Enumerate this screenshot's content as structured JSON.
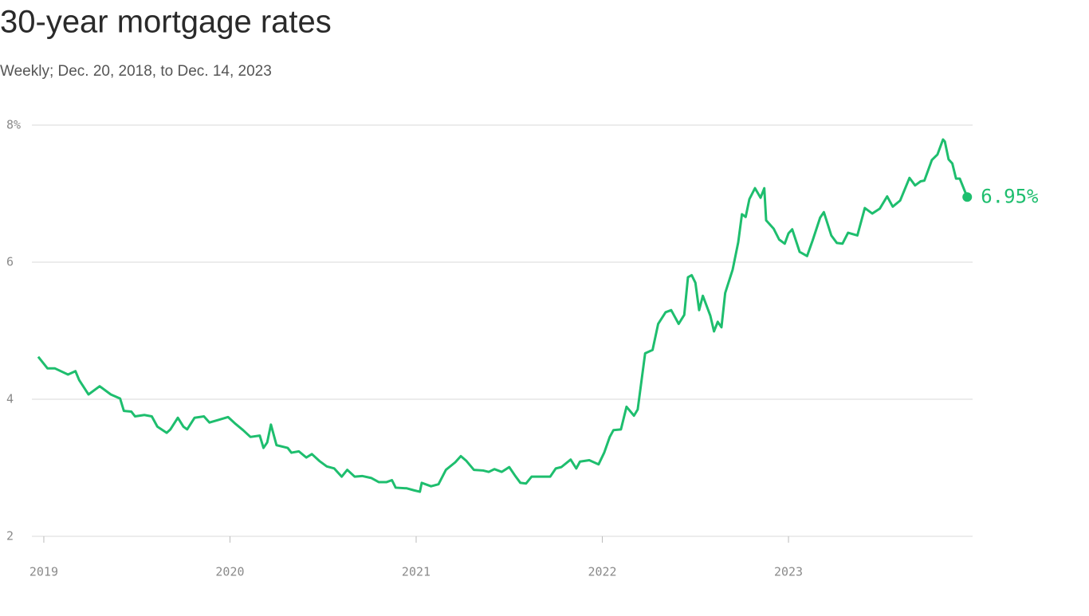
{
  "chart_data": {
    "type": "line",
    "title": "30-year mortgage rates",
    "subtitle": "Weekly; Dec. 20, 2018, to Dec. 14, 2023",
    "x": [
      2018.97,
      2019.02,
      2019.06,
      2019.13,
      2019.17,
      2019.19,
      2019.24,
      2019.3,
      2019.36,
      2019.41,
      2019.43,
      2019.47,
      2019.49,
      2019.54,
      2019.58,
      2019.61,
      2019.66,
      2019.68,
      2019.72,
      2019.75,
      2019.77,
      2019.81,
      2019.86,
      2019.89,
      2019.94,
      2019.99,
      2020.03,
      2020.07,
      2020.11,
      2020.16,
      2020.18,
      2020.2,
      2020.22,
      2020.25,
      2020.31,
      2020.33,
      2020.37,
      2020.41,
      2020.44,
      2020.48,
      2020.52,
      2020.56,
      2020.6,
      2020.63,
      2020.67,
      2020.71,
      2020.76,
      2020.8,
      2020.84,
      2020.87,
      2020.89,
      2020.95,
      2020.99,
      2021.02,
      2021.03,
      2021.08,
      2021.12,
      2021.16,
      2021.21,
      2021.24,
      2021.27,
      2021.31,
      2021.36,
      2021.39,
      2021.42,
      2021.46,
      2021.5,
      2021.53,
      2021.56,
      2021.59,
      2021.62,
      2021.68,
      2021.72,
      2021.75,
      2021.78,
      2021.83,
      2021.86,
      2021.88,
      2021.93,
      2021.98,
      2022.01,
      2022.04,
      2022.06,
      2022.1,
      2022.13,
      2022.17,
      2022.19,
      2022.23,
      2022.27,
      2022.3,
      2022.34,
      2022.37,
      2022.41,
      2022.44,
      2022.46,
      2022.48,
      2022.5,
      2022.52,
      2022.54,
      2022.58,
      2022.6,
      2022.62,
      2022.64,
      2022.66,
      2022.7,
      2022.73,
      2022.75,
      2022.77,
      2022.79,
      2022.82,
      2022.85,
      2022.87,
      2022.88,
      2022.92,
      2022.95,
      2022.98,
      2023.0,
      2023.02,
      2023.06,
      2023.1,
      2023.13,
      2023.17,
      2023.19,
      2023.23,
      2023.26,
      2023.29,
      2023.32,
      2023.37,
      2023.41,
      2023.45,
      2023.49,
      2023.53,
      2023.56,
      2023.6,
      2023.65,
      2023.68,
      2023.71,
      2023.73,
      2023.77,
      2023.8,
      2023.83,
      2023.84,
      2023.86,
      2023.88,
      2023.9,
      2023.92,
      2023.96
    ],
    "series": [
      {
        "name": "30-year mortgage rate",
        "color": "#1ebe6e",
        "values": [
          4.62,
          4.45,
          4.45,
          4.36,
          4.41,
          4.28,
          4.07,
          4.19,
          4.07,
          4.01,
          3.83,
          3.82,
          3.75,
          3.77,
          3.75,
          3.6,
          3.51,
          3.56,
          3.73,
          3.6,
          3.56,
          3.73,
          3.75,
          3.66,
          3.7,
          3.74,
          3.64,
          3.55,
          3.45,
          3.47,
          3.29,
          3.37,
          3.63,
          3.33,
          3.29,
          3.22,
          3.24,
          3.15,
          3.2,
          3.1,
          3.02,
          2.99,
          2.87,
          2.97,
          2.87,
          2.88,
          2.85,
          2.79,
          2.79,
          2.82,
          2.71,
          2.7,
          2.67,
          2.65,
          2.78,
          2.73,
          2.76,
          2.97,
          3.08,
          3.17,
          3.1,
          2.97,
          2.96,
          2.94,
          2.98,
          2.94,
          3.01,
          2.89,
          2.78,
          2.77,
          2.87,
          2.87,
          2.87,
          2.99,
          3.01,
          3.12,
          2.99,
          3.09,
          3.11,
          3.05,
          3.22,
          3.45,
          3.55,
          3.56,
          3.89,
          3.76,
          3.85,
          4.67,
          4.72,
          5.1,
          5.27,
          5.3,
          5.1,
          5.23,
          5.78,
          5.81,
          5.7,
          5.3,
          5.51,
          5.22,
          4.99,
          5.13,
          5.05,
          5.55,
          5.89,
          6.29,
          6.7,
          6.66,
          6.92,
          7.08,
          6.94,
          7.08,
          6.61,
          6.49,
          6.33,
          6.27,
          6.42,
          6.48,
          6.15,
          6.09,
          6.32,
          6.65,
          6.73,
          6.39,
          6.28,
          6.27,
          6.43,
          6.39,
          6.79,
          6.71,
          6.78,
          6.96,
          6.81,
          6.9,
          7.23,
          7.12,
          7.18,
          7.19,
          7.49,
          7.57,
          7.79,
          7.76,
          7.5,
          7.44,
          7.22,
          7.22,
          6.95
        ]
      }
    ],
    "end_label": {
      "value": 6.95,
      "label": "6.95%"
    },
    "xlim": [
      2018.936,
      2023.989
    ],
    "xticks": [
      2019,
      2020,
      2021,
      2022,
      2023
    ],
    "ylim": [
      2,
      8
    ],
    "yticks": [
      {
        "value": 8,
        "label": "8%"
      },
      6,
      4,
      2
    ],
    "grid": true
  }
}
